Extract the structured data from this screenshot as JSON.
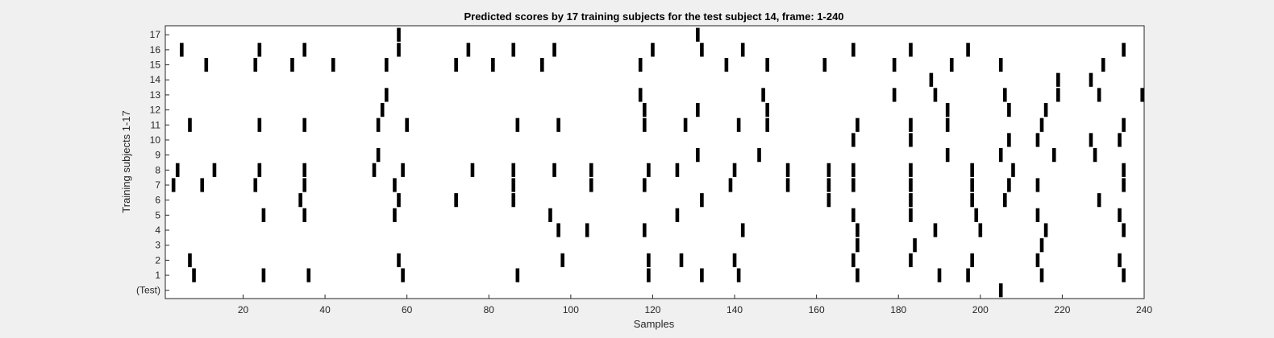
{
  "chart_data": {
    "type": "scatter",
    "title": "Predicted scores by 17 training subjects for the test subject 14, frame: 1-240",
    "xlabel": "Samples",
    "ylabel": "Training subjects 1-17",
    "xlim": [
      1,
      240
    ],
    "x_ticks": [
      20,
      40,
      60,
      80,
      100,
      120,
      140,
      160,
      180,
      200,
      220,
      240
    ],
    "y_tick_labels": [
      "(Test)",
      "1",
      "2",
      "3",
      "4",
      "5",
      "6",
      "7",
      "8",
      "9",
      "10",
      "11",
      "12",
      "13",
      "14",
      "15",
      "16",
      "17"
    ],
    "grid": false,
    "legend": "none",
    "mark_color": "#000000",
    "rows": [
      {
        "label": "(Test)",
        "x": [
          205
        ]
      },
      {
        "label": "1",
        "x": [
          8,
          25,
          36,
          59,
          87,
          119,
          132,
          141,
          170,
          190,
          197,
          215,
          235
        ]
      },
      {
        "label": "2",
        "x": [
          7,
          58,
          98,
          119,
          127,
          140,
          169,
          183,
          198,
          214,
          234
        ]
      },
      {
        "label": "3",
        "x": [
          170,
          184,
          215
        ]
      },
      {
        "label": "4",
        "x": [
          97,
          104,
          118,
          142,
          170,
          189,
          200,
          216,
          235
        ]
      },
      {
        "label": "5",
        "x": [
          25,
          35,
          57,
          95,
          126,
          169,
          183,
          199,
          214,
          234
        ]
      },
      {
        "label": "6",
        "x": [
          34,
          58,
          72,
          86,
          132,
          163,
          183,
          198,
          206,
          229
        ]
      },
      {
        "label": "7",
        "x": [
          3,
          10,
          23,
          35,
          57,
          86,
          105,
          118,
          139,
          153,
          163,
          169,
          183,
          198,
          207,
          214,
          235
        ]
      },
      {
        "label": "8",
        "x": [
          4,
          13,
          24,
          35,
          52,
          59,
          76,
          86,
          96,
          105,
          119,
          126,
          140,
          153,
          163,
          169,
          183,
          198,
          208,
          235
        ]
      },
      {
        "label": "9",
        "x": [
          53,
          131,
          146,
          192,
          205,
          218,
          228
        ]
      },
      {
        "label": "10",
        "x": [
          169,
          183,
          207,
          214,
          227,
          234
        ]
      },
      {
        "label": "11",
        "x": [
          7,
          24,
          35,
          53,
          60,
          87,
          97,
          118,
          128,
          141,
          148,
          170,
          183,
          192,
          215,
          235
        ]
      },
      {
        "label": "12",
        "x": [
          54,
          118,
          131,
          148,
          192,
          207,
          216
        ]
      },
      {
        "label": "13",
        "x": [
          55,
          117,
          147,
          179,
          189,
          206,
          219,
          229,
          240
        ]
      },
      {
        "label": "14",
        "x": [
          188,
          219,
          227
        ]
      },
      {
        "label": "15",
        "x": [
          11,
          23,
          32,
          42,
          55,
          72,
          81,
          93,
          117,
          138,
          148,
          162,
          179,
          193,
          205,
          230
        ]
      },
      {
        "label": "16",
        "x": [
          5,
          24,
          35,
          58,
          75,
          86,
          96,
          120,
          132,
          142,
          169,
          183,
          197,
          235
        ]
      },
      {
        "label": "17",
        "x": [
          58,
          131
        ]
      }
    ]
  }
}
